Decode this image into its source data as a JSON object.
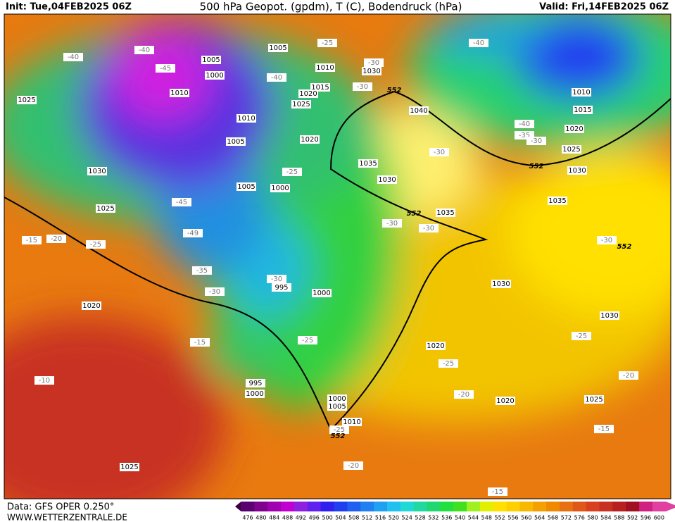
{
  "header": {
    "init": "Init: Tue,04FEB2025 06Z",
    "title": "500 hPa Geopot. (gpdm), T (C), Bodendruck (hPa)",
    "valid": "Valid: Fri,14FEB2025 06Z"
  },
  "map": {
    "pressure_labels": [
      1005,
      1000,
      1010,
      1025,
      1010,
      1005,
      1030,
      1025,
      1005,
      1000,
      1005,
      1010,
      1030,
      1015,
      1020,
      1025,
      1020,
      1040,
      1035,
      1030,
      1035,
      995,
      1000,
      1020,
      995,
      1000,
      1000,
      1005,
      1010,
      1010,
      1015,
      1020,
      1025,
      1030,
      1035,
      1030,
      1030,
      1020,
      1020,
      1025,
      1025
    ],
    "temperature_labels": [
      -40,
      -45,
      -40,
      -40,
      -25,
      -30,
      -30,
      -40,
      -40,
      -35,
      -30,
      -30,
      -25,
      -45,
      -49,
      -35,
      -30,
      -30,
      -15,
      -20,
      -25,
      -30,
      -30,
      -30,
      -15,
      -25,
      -25,
      -20,
      -25,
      -20,
      -10,
      -25,
      -15,
      -20,
      -15
    ],
    "contour_552_labels": [
      552,
      552,
      552,
      552,
      552
    ]
  },
  "colorbar": {
    "labels": [
      476,
      480,
      484,
      488,
      492,
      496,
      500,
      504,
      508,
      512,
      516,
      520,
      524,
      528,
      532,
      536,
      540,
      544,
      548,
      552,
      556,
      560,
      564,
      568,
      572,
      576,
      580,
      584,
      588,
      592,
      596,
      600
    ]
  },
  "footer": {
    "data_source": "Data: GFS OPER 0.250°",
    "website": "WWW.WETTERZENTRALE.DE"
  }
}
